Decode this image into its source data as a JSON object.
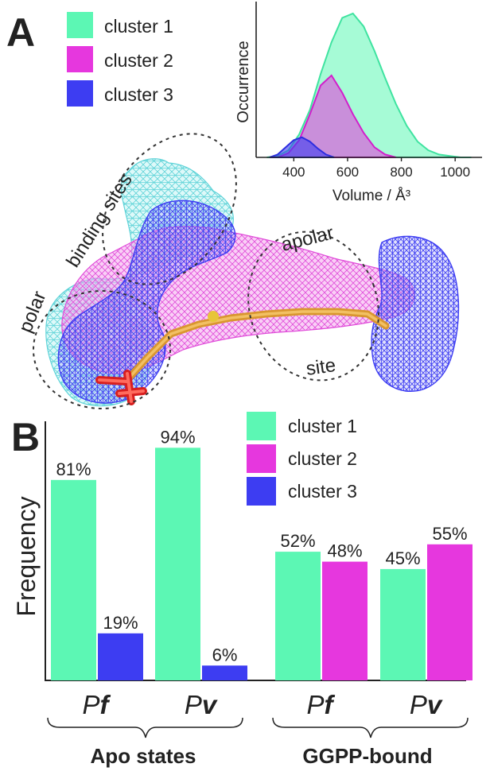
{
  "panels": {
    "a": "A",
    "b": "B"
  },
  "colors": {
    "cluster1": "#5cf7b4",
    "cluster2": "#e637de",
    "cluster3": "#3d3df2"
  },
  "legend_a": [
    "cluster 1",
    "cluster 2",
    "cluster 3"
  ],
  "site_labels": {
    "binding": "binding sites",
    "polar": "polar",
    "apolar": "apolar",
    "site": "site"
  },
  "chart_data": [
    {
      "type": "area",
      "xlabel": "Volume / Å³",
      "ylabel": "Occurrence",
      "xticks": [
        400,
        600,
        800,
        1000
      ],
      "xlim": [
        260,
        1100
      ],
      "ylim": [
        0,
        1.05
      ],
      "series": [
        {
          "name": "cluster 1",
          "x": [
            300,
            340,
            380,
            420,
            460,
            500,
            540,
            580,
            620,
            660,
            700,
            740,
            780,
            820,
            860,
            900,
            940,
            980,
            1020,
            1060
          ],
          "values": [
            0,
            0.01,
            0.05,
            0.16,
            0.33,
            0.58,
            0.8,
            0.97,
            1.0,
            0.91,
            0.74,
            0.55,
            0.37,
            0.22,
            0.11,
            0.05,
            0.02,
            0.01,
            0,
            0
          ]
        },
        {
          "name": "cluster 2",
          "x": [
            340,
            380,
            420,
            460,
            500,
            540,
            580,
            620,
            660,
            700,
            740,
            780
          ],
          "values": [
            0,
            0.03,
            0.12,
            0.3,
            0.5,
            0.57,
            0.45,
            0.3,
            0.17,
            0.07,
            0.02,
            0
          ]
        },
        {
          "name": "cluster 3",
          "x": [
            310,
            340,
            370,
            400,
            430,
            460,
            490,
            520,
            550
          ],
          "values": [
            0,
            0.02,
            0.07,
            0.12,
            0.14,
            0.11,
            0.06,
            0.02,
            0
          ]
        }
      ]
    },
    {
      "type": "bar",
      "ylabel": "Frequency",
      "ylim": [
        0,
        100
      ],
      "categories": [
        "Pf",
        "Pv",
        "Pf",
        "Pv"
      ],
      "category_labels": [
        {
          "pre": "P",
          "bold": "f"
        },
        {
          "pre": "P",
          "bold": "v"
        },
        {
          "pre": "P",
          "bold": "f"
        },
        {
          "pre": "P",
          "bold": "v"
        }
      ],
      "groups": [
        "Apo states",
        "GGPP-bound"
      ],
      "legend": [
        "cluster 1",
        "cluster 2",
        "cluster 3"
      ],
      "bars": [
        {
          "category": 0,
          "series": "cluster 1",
          "value": 81,
          "label": "81%"
        },
        {
          "category": 0,
          "series": "cluster 3",
          "value": 19,
          "label": "19%"
        },
        {
          "category": 1,
          "series": "cluster 1",
          "value": 94,
          "label": "94%"
        },
        {
          "category": 1,
          "series": "cluster 3",
          "value": 6,
          "label": "6%"
        },
        {
          "category": 2,
          "series": "cluster 1",
          "value": 52,
          "label": "52%"
        },
        {
          "category": 2,
          "series": "cluster 2",
          "value": 48,
          "label": "48%"
        },
        {
          "category": 3,
          "series": "cluster 1",
          "value": 45,
          "label": "45%"
        },
        {
          "category": 3,
          "series": "cluster 2",
          "value": 55,
          "label": "55%"
        }
      ]
    }
  ]
}
